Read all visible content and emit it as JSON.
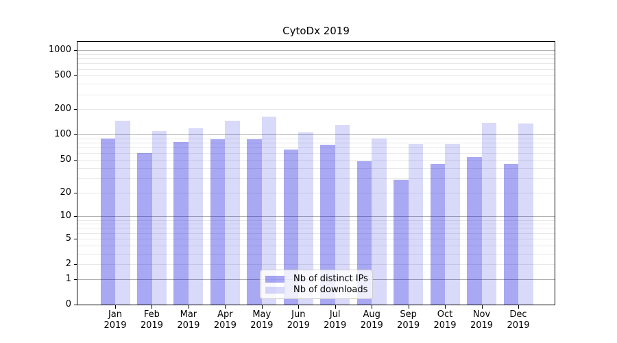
{
  "chart_data": {
    "type": "bar",
    "title": "CytoDx 2019",
    "categories": [
      "Jan 2019",
      "Feb 2019",
      "Mar 2019",
      "Apr 2019",
      "May 2019",
      "Jun 2019",
      "Jul 2019",
      "Aug 2019",
      "Sep 2019",
      "Oct 2019",
      "Nov 2019",
      "Dec 2019"
    ],
    "series": [
      {
        "name": "Nb of distinct IPs",
        "color": "rgba(0,0,220,0.34)",
        "values": [
          90,
          61,
          82,
          88,
          88,
          67,
          76,
          48,
          29,
          45,
          54,
          45
        ]
      },
      {
        "name": "Nb of downloads",
        "color": "rgba(0,0,220,0.15)",
        "values": [
          148,
          111,
          120,
          147,
          165,
          106,
          130,
          90,
          78,
          77,
          139,
          135
        ]
      }
    ],
    "ylabel": "",
    "xlabel": "",
    "yscale": "log(value+1)",
    "yticks": [
      0,
      1,
      2,
      5,
      10,
      20,
      50,
      100,
      200,
      500,
      1000
    ],
    "ylim": [
      0,
      1258
    ],
    "grid": true,
    "legend_position": "lower center",
    "colors": {
      "major_grid": "#b0b0b0",
      "minor_grid": "#e8e8e8",
      "spine": "#000000",
      "legend_border": "#cccccc"
    }
  }
}
